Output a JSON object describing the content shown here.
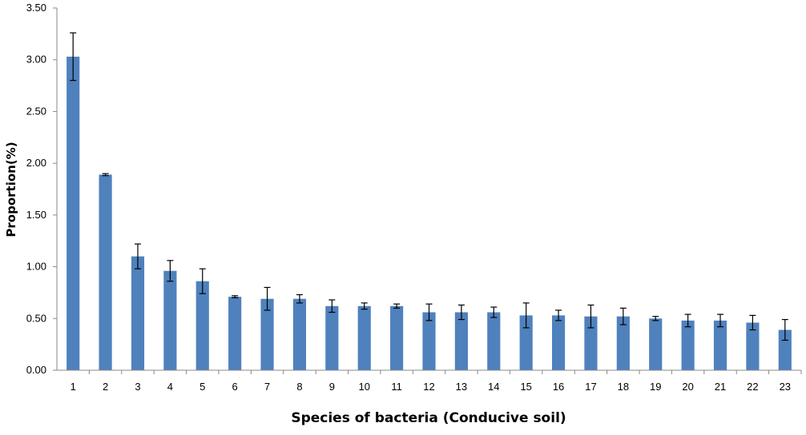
{
  "chart_data": {
    "type": "bar",
    "title": "",
    "xlabel": "Species of bacteria (Conducive soil)",
    "ylabel": "Proportion(%)",
    "ylim": [
      0,
      3.5
    ],
    "yticks": [
      "0.00",
      "0.50",
      "1.00",
      "1.50",
      "2.00",
      "2.50",
      "3.00",
      "3.50"
    ],
    "categories": [
      "1",
      "2",
      "3",
      "4",
      "5",
      "6",
      "7",
      "8",
      "9",
      "10",
      "11",
      "12",
      "13",
      "14",
      "15",
      "16",
      "17",
      "18",
      "19",
      "20",
      "21",
      "22",
      "23"
    ],
    "values": [
      3.03,
      1.89,
      1.1,
      0.96,
      0.86,
      0.71,
      0.69,
      0.69,
      0.62,
      0.62,
      0.62,
      0.56,
      0.56,
      0.56,
      0.53,
      0.53,
      0.52,
      0.52,
      0.5,
      0.48,
      0.48,
      0.46,
      0.39
    ],
    "errors": [
      0.23,
      0.01,
      0.12,
      0.1,
      0.12,
      0.01,
      0.11,
      0.04,
      0.06,
      0.03,
      0.02,
      0.08,
      0.07,
      0.05,
      0.12,
      0.05,
      0.11,
      0.08,
      0.02,
      0.06,
      0.06,
      0.07,
      0.1
    ],
    "bar_color": "#4F81BD",
    "grid": false,
    "legend": "none"
  }
}
